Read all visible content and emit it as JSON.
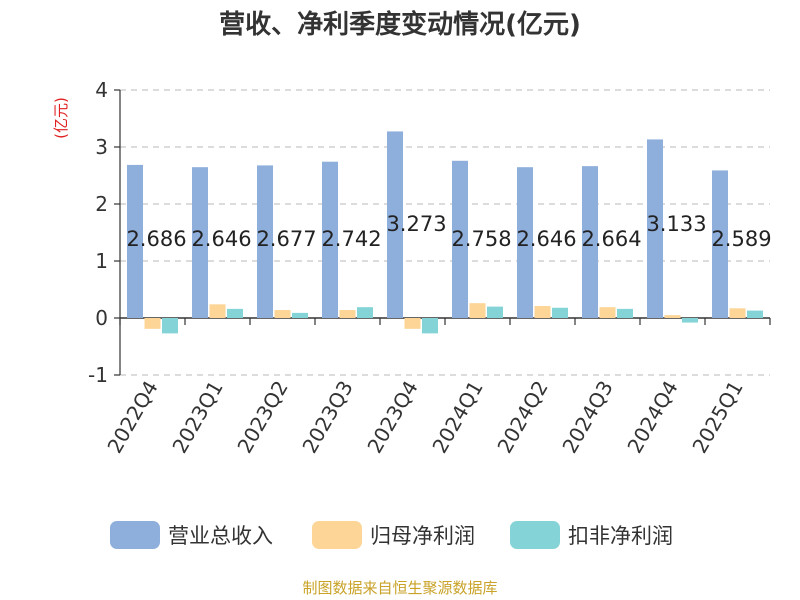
{
  "chart_data": {
    "type": "bar",
    "title": "营收、净利季度变动情况(亿元)",
    "ylabel": "(亿元)",
    "ylim": [
      -1,
      4
    ],
    "yticks": [
      -1,
      0,
      1,
      2,
      3,
      4
    ],
    "grid": true,
    "legend_position": "bottom",
    "categories": [
      "2022Q4",
      "2023Q1",
      "2023Q2",
      "2023Q3",
      "2023Q4",
      "2024Q1",
      "2024Q2",
      "2024Q3",
      "2024Q4",
      "2025Q1"
    ],
    "series": [
      {
        "name": "营业总收入",
        "color": "#8eaedb",
        "values": [
          2.686,
          2.646,
          2.677,
          2.742,
          3.273,
          2.758,
          2.646,
          2.664,
          3.133,
          2.589
        ],
        "labels": [
          "2.686",
          "2.646",
          "2.677",
          "2.742",
          "3.273",
          "2.758",
          "2.646",
          "2.664",
          "3.133",
          "2.589"
        ]
      },
      {
        "name": "归母净利润",
        "color": "#fdd597",
        "values": [
          -0.19,
          0.24,
          0.14,
          0.14,
          -0.19,
          0.26,
          0.21,
          0.19,
          0.05,
          0.17
        ]
      },
      {
        "name": "扣非净利润",
        "color": "#84d4d7",
        "values": [
          -0.27,
          0.16,
          0.09,
          0.19,
          -0.27,
          0.2,
          0.18,
          0.16,
          -0.08,
          0.13
        ]
      }
    ]
  },
  "footer": {
    "source": "制图数据来自恒生聚源数据库"
  }
}
